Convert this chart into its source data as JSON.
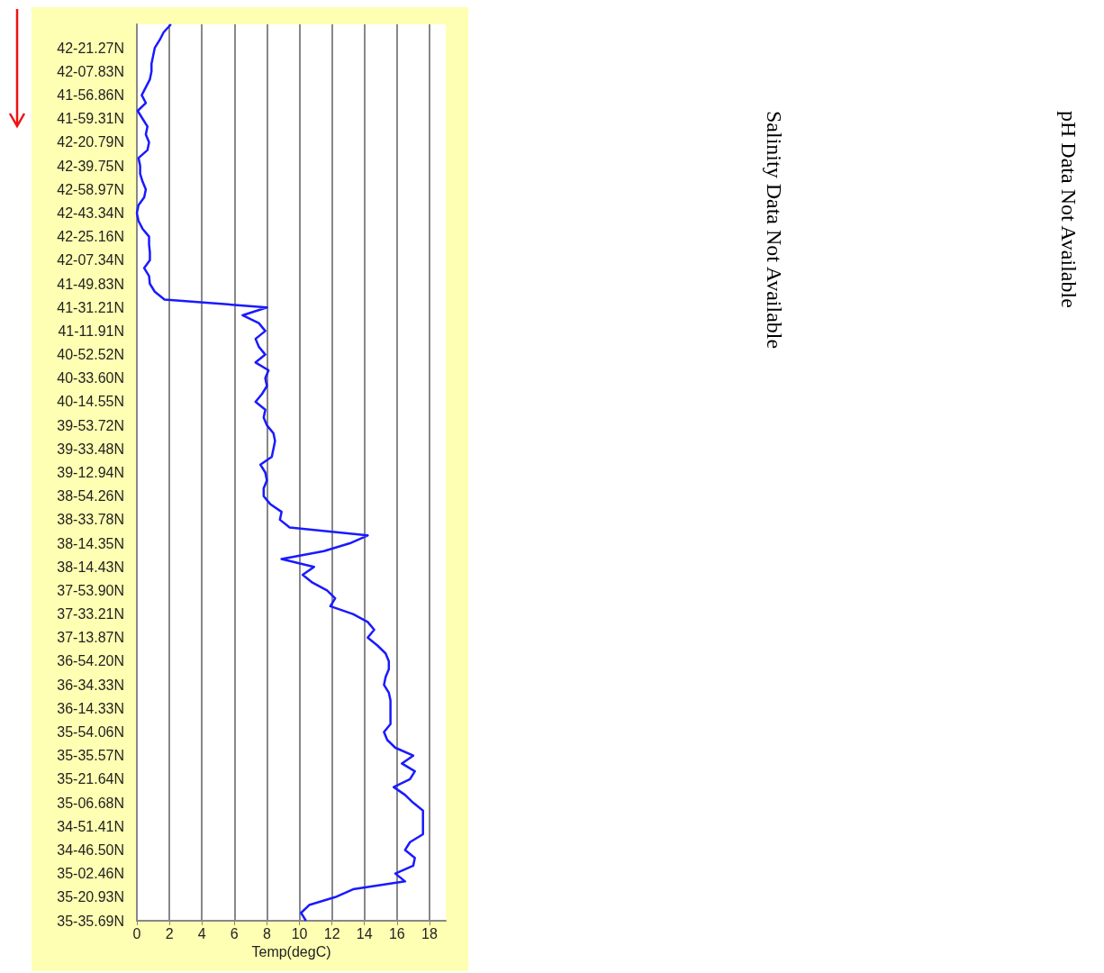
{
  "chart_data": {
    "type": "line",
    "orientation": "horizontal",
    "xlabel": "Temp(degC)",
    "categories": [
      null,
      null,
      null,
      "42-21.27N",
      null,
      null,
      "42-07.83N",
      null,
      null,
      "41-56.86N",
      null,
      null,
      "41-59.31N",
      null,
      null,
      "42-20.79N",
      null,
      null,
      "42-39.75N",
      null,
      null,
      "42-58.97N",
      null,
      null,
      "42-43.34N",
      null,
      null,
      "42-25.16N",
      null,
      null,
      "42-07.34N",
      null,
      null,
      "41-49.83N",
      null,
      null,
      "41-31.21N",
      null,
      null,
      "41-11.91N",
      null,
      null,
      "40-52.52N",
      null,
      null,
      "40-33.60N",
      null,
      null,
      "40-14.55N",
      null,
      null,
      "39-53.72N",
      null,
      null,
      "39-33.48N",
      null,
      null,
      "39-12.94N",
      null,
      null,
      "38-54.26N",
      null,
      null,
      "38-33.78N",
      null,
      null,
      "38-14.35N",
      null,
      null,
      "38-14.43N",
      null,
      null,
      "37-53.90N",
      null,
      null,
      "37-33.21N",
      null,
      null,
      "37-13.87N",
      null,
      null,
      "36-54.20N",
      null,
      null,
      "36-34.33N",
      null,
      null,
      "36-14.33N",
      null,
      null,
      "35-54.06N",
      null,
      null,
      "35-35.57N",
      null,
      null,
      "35-21.64N",
      null,
      null,
      "35-06.68N",
      null,
      null,
      "34-51.41N",
      null,
      null,
      "34-46.50N",
      null,
      null,
      "35-02.46N",
      null,
      null,
      "35-20.93N",
      null,
      null,
      "35-35.69N"
    ],
    "series": [
      {
        "color": "#1a1aff",
        "values": [
          2.1,
          1.65,
          1.4,
          1.1,
          1.0,
          0.9,
          0.9,
          0.8,
          0.55,
          0.3,
          0.55,
          0.05,
          0.35,
          0.65,
          0.55,
          0.75,
          0.65,
          0.1,
          0.2,
          0.2,
          0.35,
          0.55,
          0.45,
          0.1,
          0,
          0.1,
          0.35,
          0.75,
          0.75,
          0.8,
          0.8,
          0.45,
          0.75,
          0.8,
          1.1,
          1.7,
          8.0,
          6.5,
          7.5,
          7.9,
          7.3,
          7.5,
          7.9,
          7.3,
          8.1,
          7.9,
          8.0,
          7.7,
          7.3,
          7.9,
          7.8,
          8.0,
          8.4,
          8.5,
          8.4,
          8.3,
          7.6,
          7.9,
          8.0,
          7.8,
          7.8,
          8.2,
          8.9,
          8.8,
          9.4,
          14.2,
          13.1,
          11.5,
          8.9,
          10.9,
          10.2,
          10.8,
          11.7,
          12.2,
          11.9,
          13.3,
          14.2,
          14.6,
          14.2,
          14.8,
          15.3,
          15.5,
          15.5,
          15.3,
          15.2,
          15.5,
          15.6,
          15.6,
          15.6,
          15.6,
          15.2,
          15.4,
          15.9,
          17.0,
          16.3,
          17.1,
          16.8,
          15.8,
          16.5,
          17.0,
          17.6,
          17.6,
          17.6,
          17.6,
          16.8,
          16.5,
          17.1,
          17.0,
          15.9,
          16.5,
          13.3,
          12.2,
          10.6,
          10.1,
          10.4
        ]
      }
    ],
    "xlim": [
      0,
      19
    ],
    "xticks": [
      0,
      2,
      4,
      6,
      8,
      10,
      12,
      14,
      16,
      18
    ],
    "grid": "x",
    "annotations": [
      "Salinity Data Not Available",
      "pH Data Not Available"
    ]
  }
}
